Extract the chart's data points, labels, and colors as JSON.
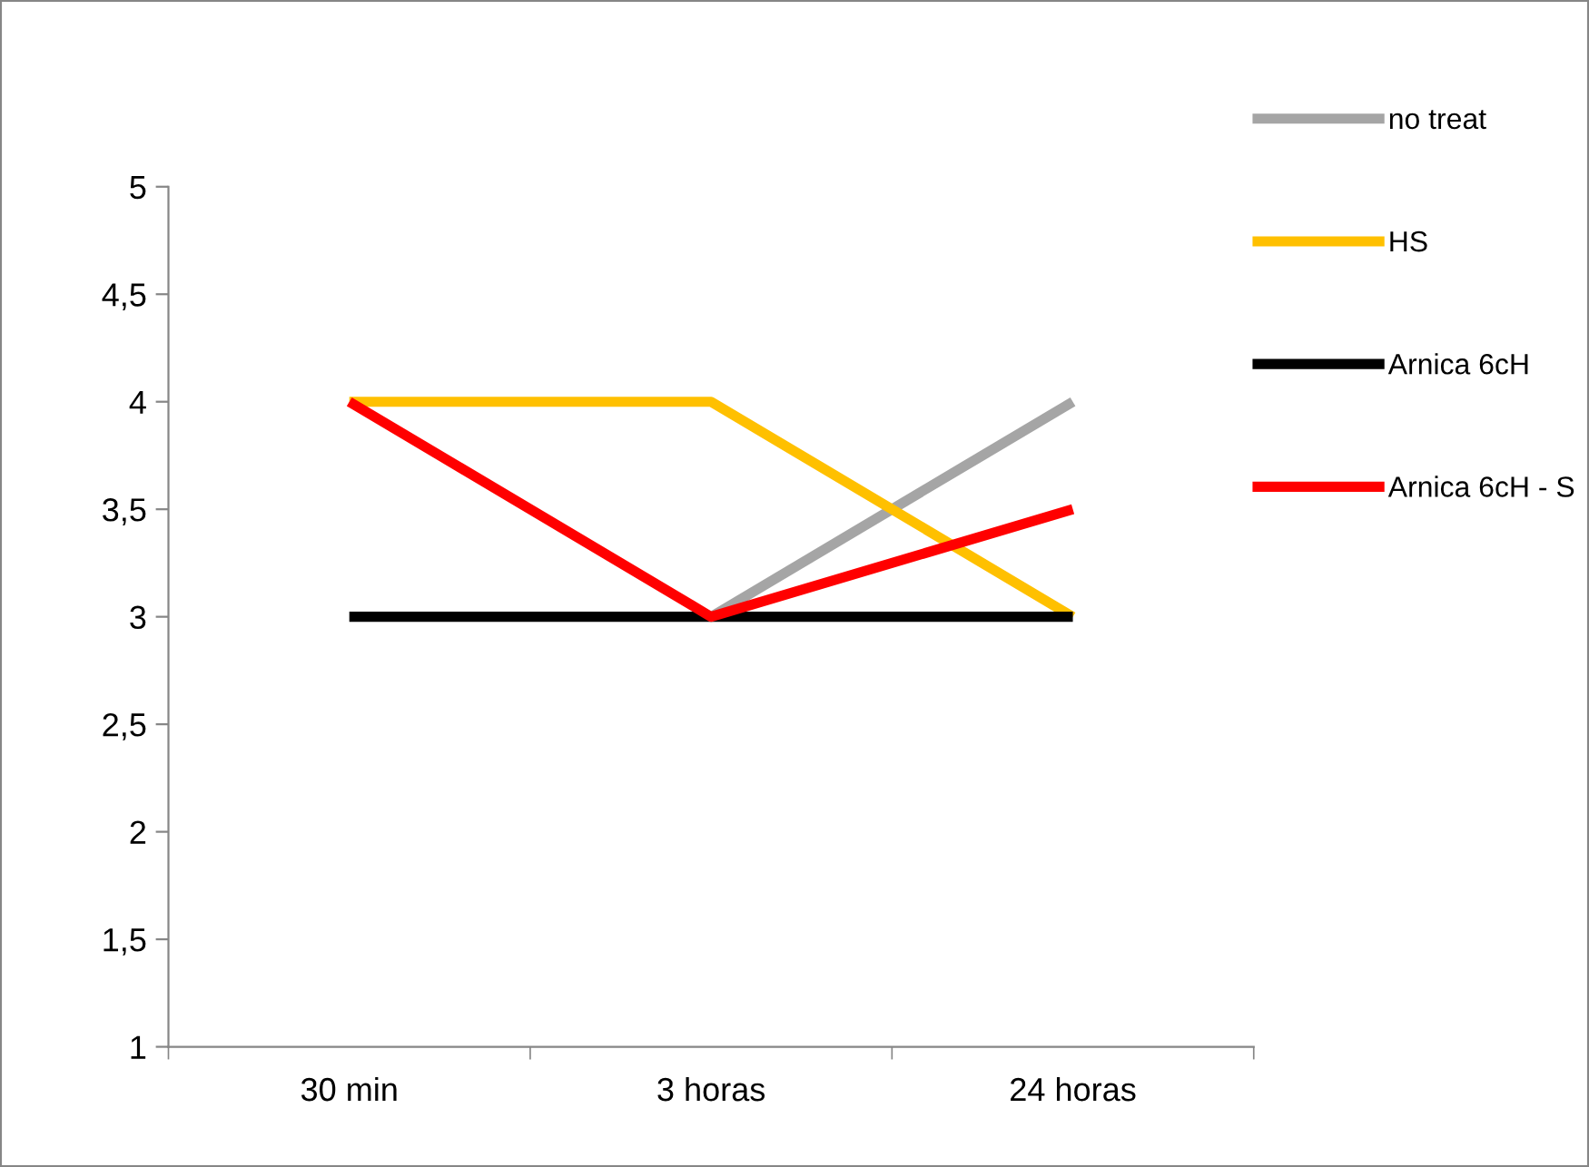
{
  "chart_data": {
    "type": "line",
    "categories": [
      "30 min",
      "3 horas",
      "24 horas"
    ],
    "series": [
      {
        "name": "no treat",
        "color": "#a5a5a5",
        "values": [
          null,
          3,
          4
        ]
      },
      {
        "name": "HS",
        "color": "#ffc000",
        "values": [
          4,
          4,
          3
        ]
      },
      {
        "name": "Arnica 6cH",
        "color": "#000000",
        "values": [
          3,
          3,
          3
        ]
      },
      {
        "name": "Arnica 6cH - S",
        "color": "#ff0000",
        "values": [
          4,
          3,
          3.5
        ]
      }
    ],
    "ylim": [
      1,
      5
    ],
    "yticks": [
      1,
      {
        "value": 1.5,
        "label": "1,5"
      },
      2,
      {
        "value": 2.5,
        "label": "2,5"
      },
      3,
      {
        "value": 3.5,
        "label": "3,5"
      },
      4,
      {
        "value": 4.5,
        "label": "4,5"
      },
      5
    ],
    "grid": false,
    "legend": "right",
    "marker": "none",
    "line_style": "solid"
  }
}
